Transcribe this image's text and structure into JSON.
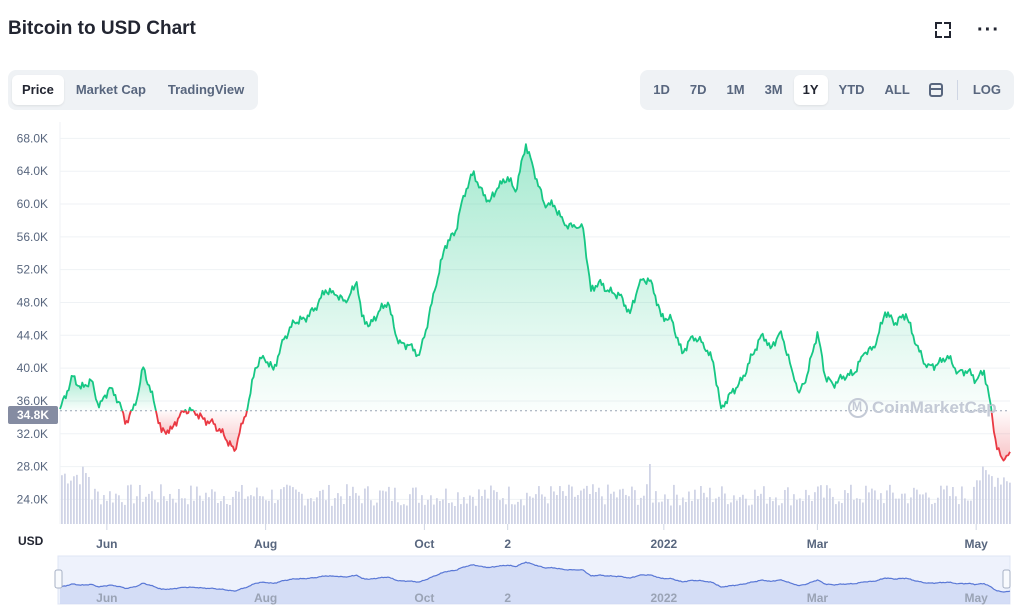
{
  "title": "Bitcoin to USD Chart",
  "icons": {
    "fullscreen": "fullscreen-icon",
    "more": "more-icon",
    "calendar": "calendar-icon",
    "watermark": "cmc-logo-icon"
  },
  "tabs": [
    {
      "label": "Price",
      "active": true
    },
    {
      "label": "Market Cap",
      "active": false
    },
    {
      "label": "TradingView",
      "active": false
    }
  ],
  "ranges": [
    {
      "label": "1D",
      "active": false
    },
    {
      "label": "7D",
      "active": false
    },
    {
      "label": "1M",
      "active": false
    },
    {
      "label": "3M",
      "active": false
    },
    {
      "label": "1Y",
      "active": true
    },
    {
      "label": "YTD",
      "active": false
    },
    {
      "label": "ALL",
      "active": false
    }
  ],
  "log_label": "LOG",
  "currency_label": "USD",
  "current_price_label": "34.8K",
  "watermark_text": "CoinMarketCap",
  "colors": {
    "up": "#16c784",
    "down": "#ea3943",
    "volume": "#d0d4e6",
    "navigator": "#5a78d6",
    "badge": "#858ca2"
  },
  "chart_data": {
    "type": "line",
    "title": "Bitcoin to USD Chart",
    "xlabel": "",
    "ylabel": "",
    "ylim": [
      21000,
      70000
    ],
    "yticks": [
      24000,
      28000,
      32000,
      36000,
      40000,
      44000,
      48000,
      52000,
      56000,
      60000,
      64000,
      68000
    ],
    "ytick_labels": [
      "24.0K",
      "28.0K",
      "32.0K",
      "36.0K",
      "40.0K",
      "44.0K",
      "48.0K",
      "52.0K",
      "56.0K",
      "60.0K",
      "64.0K",
      "68.0K"
    ],
    "xticks": [
      "Jun",
      "Aug",
      "Oct",
      "2",
      "2022",
      "Mar",
      "May"
    ],
    "xtick_dates": [
      "2021-06-01",
      "2021-08-01",
      "2021-10-01",
      "2021-11-02",
      "2022-01-01",
      "2022-03-01",
      "2022-05-01"
    ],
    "x_range": [
      "2021-05-14",
      "2022-05-14"
    ],
    "baseline": 34800,
    "grid": true,
    "series": [
      {
        "values": [
          [
            "2021-05-14",
            35000
          ],
          [
            "2021-05-19",
            39000
          ],
          [
            "2021-05-22",
            37500
          ],
          [
            "2021-05-26",
            38500
          ],
          [
            "2021-05-29",
            35200
          ],
          [
            "2021-06-02",
            37600
          ],
          [
            "2021-06-06",
            35800
          ],
          [
            "2021-06-08",
            33200
          ],
          [
            "2021-06-12",
            35500
          ],
          [
            "2021-06-15",
            40100
          ],
          [
            "2021-06-19",
            36000
          ],
          [
            "2021-06-22",
            32200
          ],
          [
            "2021-06-26",
            32600
          ],
          [
            "2021-06-30",
            34800
          ],
          [
            "2021-07-04",
            34900
          ],
          [
            "2021-07-08",
            33800
          ],
          [
            "2021-07-12",
            33200
          ],
          [
            "2021-07-16",
            31800
          ],
          [
            "2021-07-20",
            29900
          ],
          [
            "2021-07-22",
            32100
          ],
          [
            "2021-07-25",
            35000
          ],
          [
            "2021-07-28",
            40000
          ],
          [
            "2021-07-31",
            41500
          ],
          [
            "2021-08-04",
            39800
          ],
          [
            "2021-08-08",
            43500
          ],
          [
            "2021-08-12",
            45600
          ],
          [
            "2021-08-16",
            46000
          ],
          [
            "2021-08-20",
            47300
          ],
          [
            "2021-08-24",
            49500
          ],
          [
            "2021-08-28",
            48900
          ],
          [
            "2021-09-01",
            48000
          ],
          [
            "2021-09-05",
            50500
          ],
          [
            "2021-09-07",
            46300
          ],
          [
            "2021-09-10",
            45200
          ],
          [
            "2021-09-14",
            47100
          ],
          [
            "2021-09-17",
            48000
          ],
          [
            "2021-09-21",
            43000
          ],
          [
            "2021-09-25",
            42800
          ],
          [
            "2021-09-29",
            41600
          ],
          [
            "2021-10-01",
            43800
          ],
          [
            "2021-10-05",
            49500
          ],
          [
            "2021-10-09",
            54900
          ],
          [
            "2021-10-13",
            56700
          ],
          [
            "2021-10-16",
            61000
          ],
          [
            "2021-10-20",
            64000
          ],
          [
            "2021-10-22",
            62000
          ],
          [
            "2021-10-26",
            60300
          ],
          [
            "2021-10-29",
            61900
          ],
          [
            "2021-11-02",
            63300
          ],
          [
            "2021-11-05",
            61500
          ],
          [
            "2021-11-09",
            67300
          ],
          [
            "2021-11-12",
            64200
          ],
          [
            "2021-11-16",
            60100
          ],
          [
            "2021-11-20",
            59800
          ],
          [
            "2021-11-24",
            57400
          ],
          [
            "2021-11-28",
            57200
          ],
          [
            "2021-12-01",
            57000
          ],
          [
            "2021-12-04",
            49400
          ],
          [
            "2021-12-07",
            50500
          ],
          [
            "2021-12-11",
            49300
          ],
          [
            "2021-12-15",
            48900
          ],
          [
            "2021-12-19",
            46700
          ],
          [
            "2021-12-23",
            50800
          ],
          [
            "2021-12-27",
            50700
          ],
          [
            "2021-12-31",
            46300
          ],
          [
            "2022-01-04",
            45900
          ],
          [
            "2022-01-08",
            41800
          ],
          [
            "2022-01-12",
            43900
          ],
          [
            "2022-01-16",
            43100
          ],
          [
            "2022-01-20",
            40700
          ],
          [
            "2022-01-23",
            35100
          ],
          [
            "2022-01-27",
            37000
          ],
          [
            "2022-01-31",
            38500
          ],
          [
            "2022-02-04",
            41600
          ],
          [
            "2022-02-08",
            44200
          ],
          [
            "2022-02-11",
            42400
          ],
          [
            "2022-02-15",
            44500
          ],
          [
            "2022-02-19",
            40000
          ],
          [
            "2022-02-22",
            37000
          ],
          [
            "2022-02-25",
            39100
          ],
          [
            "2022-03-01",
            44400
          ],
          [
            "2022-03-04",
            39000
          ],
          [
            "2022-03-07",
            38000
          ],
          [
            "2022-03-11",
            39000
          ],
          [
            "2022-03-15",
            39300
          ],
          [
            "2022-03-19",
            41800
          ],
          [
            "2022-03-23",
            42500
          ],
          [
            "2022-03-27",
            46800
          ],
          [
            "2022-03-31",
            45500
          ],
          [
            "2022-04-04",
            46600
          ],
          [
            "2022-04-08",
            42800
          ],
          [
            "2022-04-12",
            40100
          ],
          [
            "2022-04-16",
            40400
          ],
          [
            "2022-04-20",
            41500
          ],
          [
            "2022-04-24",
            39500
          ],
          [
            "2022-04-28",
            39700
          ],
          [
            "2022-05-01",
            38500
          ],
          [
            "2022-05-04",
            39700
          ],
          [
            "2022-05-06",
            36500
          ],
          [
            "2022-05-09",
            30100
          ],
          [
            "2022-05-11",
            29000
          ],
          [
            "2022-05-12",
            28900
          ],
          [
            "2022-05-14",
            29800
          ]
        ]
      }
    ]
  }
}
